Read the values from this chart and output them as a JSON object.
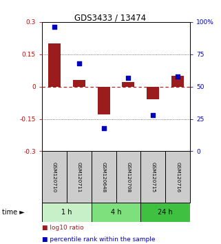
{
  "title": "GDS3433 / 13474",
  "samples": [
    "GSM120710",
    "GSM120711",
    "GSM120648",
    "GSM120708",
    "GSM120715",
    "GSM120716"
  ],
  "log10_ratio": [
    0.2,
    0.03,
    -0.13,
    0.02,
    -0.06,
    0.05
  ],
  "percentile_rank": [
    96,
    68,
    18,
    57,
    28,
    58
  ],
  "groups": [
    {
      "label": "1 h",
      "indices": [
        0,
        1
      ],
      "color": "#c8f0c8"
    },
    {
      "label": "4 h",
      "indices": [
        2,
        3
      ],
      "color": "#7de07d"
    },
    {
      "label": "24 h",
      "indices": [
        4,
        5
      ],
      "color": "#40c040"
    }
  ],
  "bar_color": "#9b1c1c",
  "dot_color": "#0000bb",
  "ylim_left": [
    -0.3,
    0.3
  ],
  "ylim_right": [
    0,
    100
  ],
  "yticks_left": [
    -0.3,
    -0.15,
    0,
    0.15,
    0.3
  ],
  "yticks_right": [
    0,
    25,
    50,
    75,
    100
  ],
  "ytick_labels_left": [
    "-0.3",
    "-0.15",
    "0",
    "0.15",
    "0.3"
  ],
  "ytick_labels_right": [
    "0",
    "25",
    "50",
    "75",
    "100%"
  ],
  "hline_zero_color": "#cc0000",
  "hline_dotted_color": "#444444",
  "time_label": "time",
  "legend_bar_label": "log10 ratio",
  "legend_dot_label": "percentile rank within the sample",
  "sample_box_color": "#cccccc",
  "bar_width": 0.5
}
